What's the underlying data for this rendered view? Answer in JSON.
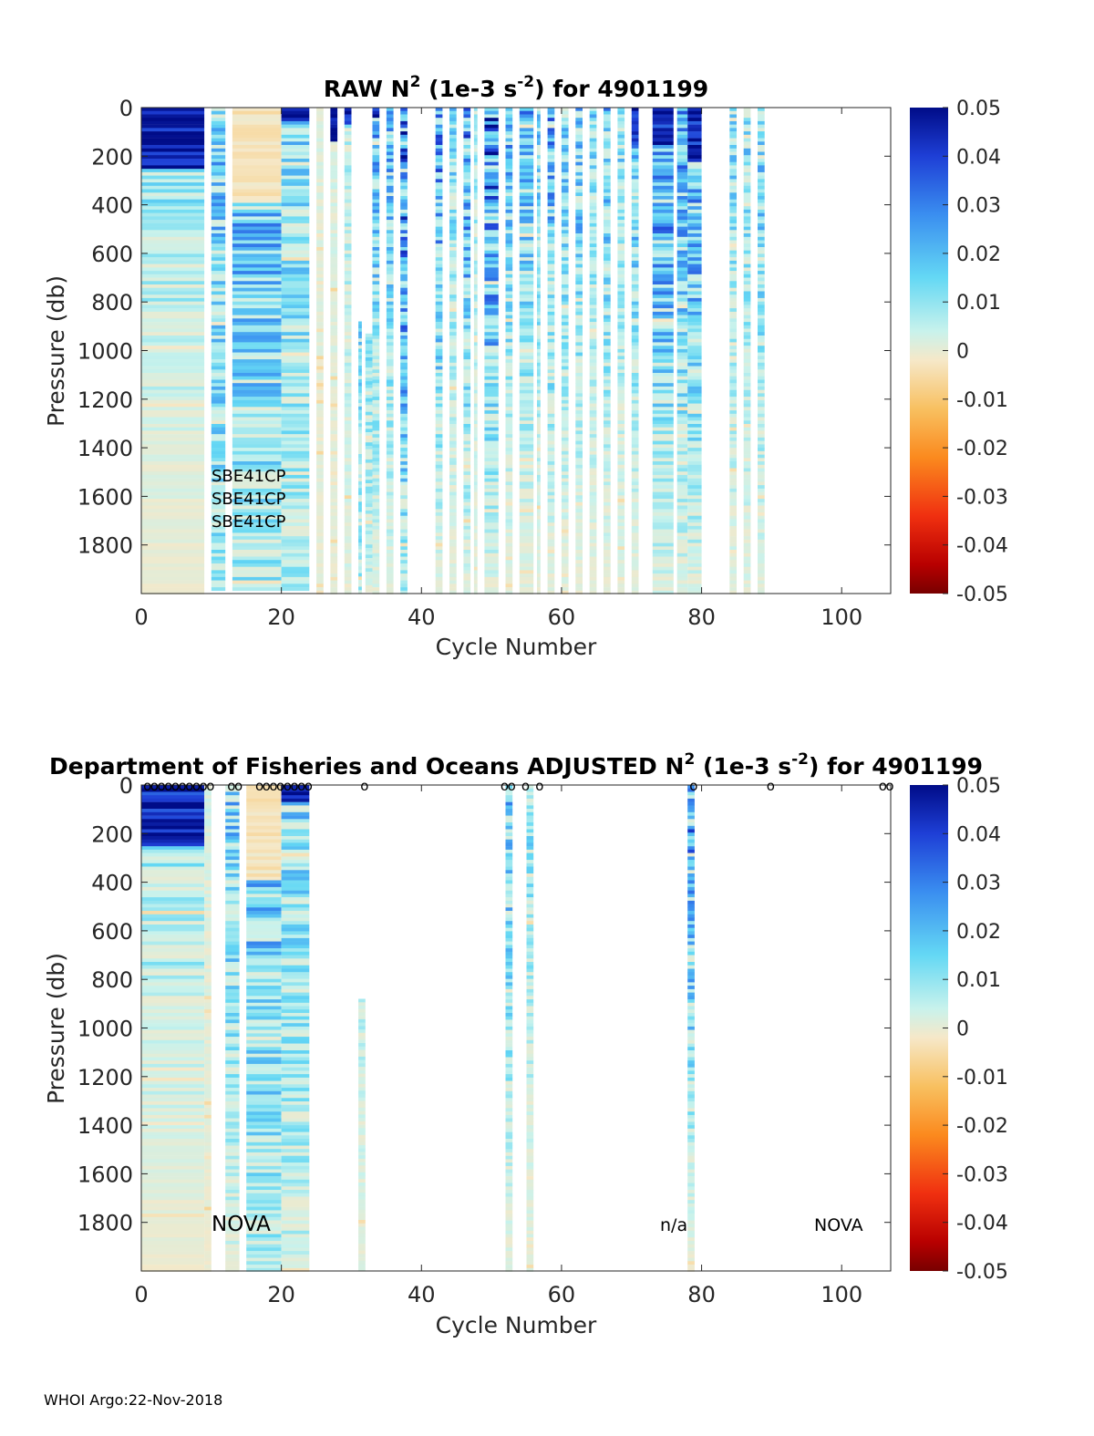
{
  "chart_data": [
    {
      "type": "heatmap",
      "id": "raw",
      "title_main": "RAW N",
      "title_sup": "2",
      "title_unit_open": " (1e-3 s",
      "title_unit_sup": "-2",
      "title_tail": ") for 4901199",
      "xlabel": "Cycle Number",
      "ylabel": "Pressure (db)",
      "xlim": [
        0,
        107
      ],
      "ylim": [
        2000,
        0
      ],
      "xticks": [
        "0",
        "20",
        "40",
        "60",
        "80",
        "100"
      ],
      "xtick_values": [
        0,
        20,
        40,
        60,
        80,
        100
      ],
      "yticks": [
        "0",
        "200",
        "400",
        "600",
        "800",
        "1000",
        "1200",
        "1400",
        "1600",
        "1800"
      ],
      "ytick_values": [
        0,
        200,
        400,
        600,
        800,
        1000,
        1200,
        1400,
        1600,
        1800
      ],
      "sensor_labels": [
        "SBE41CP",
        "SBE41CP",
        "SBE41CP"
      ],
      "sensor_label_pos": {
        "x": 10,
        "y": [
          1520,
          1615,
          1710
        ]
      },
      "profiles": [
        {
          "cycles": [
            0,
            9
          ],
          "pmax": 1990,
          "surface_strong": 250,
          "mid": 0.014,
          "deep": 0.002
        },
        {
          "cycles": [
            10,
            12
          ],
          "pmax": 1980,
          "surface_strong": 0,
          "mid": 0.018,
          "deep": 0.012
        },
        {
          "cycles": [
            13,
            20
          ],
          "pmax": 1980,
          "surface_strong": 0,
          "mid": 0.02,
          "deep": 0.012,
          "warm_patch": [
            0,
            380
          ]
        },
        {
          "cycles": [
            20,
            24
          ],
          "pmax": 1980,
          "surface_strong": 50,
          "mid": 0.015,
          "deep": 0.01
        },
        {
          "cycles": [
            25,
            26
          ],
          "pmax": 1990,
          "surface_strong": 0,
          "mid": 0.005,
          "deep": 0.003
        },
        {
          "cycles": [
            27,
            28
          ],
          "pmax": 1990,
          "surface_strong": 130,
          "mid": 0.006,
          "deep": 0.003
        },
        {
          "cycles": [
            29,
            30
          ],
          "pmax": 1990,
          "surface_strong": 60,
          "mid": 0.01,
          "deep": 0.005
        },
        {
          "cycles": [
            31,
            31.5
          ],
          "pmax": 1990,
          "pmin": 880,
          "surface_strong": 0,
          "mid": 0.02,
          "deep": 0.01
        },
        {
          "cycles": [
            32,
            33
          ],
          "pmax": 1990,
          "pmin": 930,
          "surface_strong": 0,
          "mid": 0.015,
          "deep": 0.008
        },
        {
          "cycles": [
            33,
            34
          ],
          "pmax": 1990,
          "surface_strong": 40,
          "mid": 0.02,
          "deep": 0.005
        },
        {
          "cycles": [
            35,
            36
          ],
          "pmax": 1990,
          "surface_strong": 0,
          "mid": 0.02,
          "deep": 0.005
        },
        {
          "cycles": [
            37,
            38
          ],
          "pmax": 1990,
          "surface_strong": 0,
          "mid": 0.03,
          "deep": 0.01
        },
        {
          "cycles": [
            42,
            43
          ],
          "pmax": 1990,
          "surface_strong": 0,
          "mid": 0.025,
          "deep": 0.005
        },
        {
          "cycles": [
            44,
            45
          ],
          "pmax": 1990,
          "surface_strong": 0,
          "mid": 0.015,
          "deep": 0.004
        },
        {
          "cycles": [
            46,
            47
          ],
          "pmax": 1990,
          "surface_strong": 0,
          "mid": 0.025,
          "deep": 0.005
        },
        {
          "cycles": [
            47.5,
            48
          ],
          "pmax": 1990,
          "surface_strong": 0,
          "mid": 0.012,
          "deep": 0.004
        },
        {
          "cycles": [
            49,
            51
          ],
          "pmax": 1990,
          "surface_strong": 0,
          "mid": 0.03,
          "deep": 0.005
        },
        {
          "cycles": [
            52,
            53
          ],
          "pmax": 1990,
          "surface_strong": 0,
          "mid": 0.02,
          "deep": 0.004
        },
        {
          "cycles": [
            54,
            56
          ],
          "pmax": 1990,
          "surface_strong": 0,
          "mid": 0.02,
          "deep": 0.004
        },
        {
          "cycles": [
            56.5,
            57
          ],
          "pmax": 1990,
          "surface_strong": 0,
          "mid": 0.018,
          "deep": 0.004
        },
        {
          "cycles": [
            58,
            59
          ],
          "pmax": 1990,
          "surface_strong": 0,
          "mid": 0.022,
          "deep": 0.004
        },
        {
          "cycles": [
            60,
            61
          ],
          "pmax": 1990,
          "surface_strong": 0,
          "mid": 0.018,
          "deep": 0.004
        },
        {
          "cycles": [
            62,
            63
          ],
          "pmax": 1990,
          "surface_strong": 0,
          "mid": 0.02,
          "deep": 0.004
        },
        {
          "cycles": [
            64,
            65
          ],
          "pmax": 1990,
          "surface_strong": 0,
          "mid": 0.015,
          "deep": 0.004
        },
        {
          "cycles": [
            66,
            67
          ],
          "pmax": 1990,
          "surface_strong": 0,
          "mid": 0.02,
          "deep": 0.004
        },
        {
          "cycles": [
            68,
            69
          ],
          "pmax": 1990,
          "surface_strong": 0,
          "mid": 0.015,
          "deep": 0.004
        },
        {
          "cycles": [
            70,
            71
          ],
          "pmax": 1990,
          "surface_strong": 150,
          "mid": 0.02,
          "deep": 0.004
        },
        {
          "cycles": [
            73,
            76
          ],
          "pmax": 1990,
          "surface_strong": 150,
          "mid": 0.025,
          "deep": 0.006
        },
        {
          "cycles": [
            76.5,
            78
          ],
          "pmax": 1990,
          "surface_strong": 0,
          "mid": 0.022,
          "deep": 0.006
        },
        {
          "cycles": [
            78,
            80
          ],
          "pmax": 1990,
          "surface_strong": 220,
          "mid": 0.025,
          "deep": 0.006
        },
        {
          "cycles": [
            84,
            85
          ],
          "pmax": 1990,
          "surface_strong": 0,
          "mid": 0.015,
          "deep": 0.005
        },
        {
          "cycles": [
            86,
            87
          ],
          "pmax": 1990,
          "surface_strong": 0,
          "mid": 0.015,
          "deep": 0.005
        },
        {
          "cycles": [
            88,
            89
          ],
          "pmax": 1990,
          "surface_strong": 0,
          "mid": 0.018,
          "deep": 0.005
        }
      ]
    },
    {
      "type": "heatmap",
      "id": "adjusted",
      "title_main": "Department of Fisheries and Oceans  ADJUSTED N",
      "title_sup": "2",
      "title_unit_open": " (1e-3 s",
      "title_unit_sup": "-2",
      "title_tail": ") for 4901199",
      "xlabel": "Cycle Number",
      "ylabel": "Pressure (db)",
      "xlim": [
        0,
        107
      ],
      "ylim": [
        2000,
        0
      ],
      "xticks": [
        "0",
        "20",
        "40",
        "60",
        "80",
        "100"
      ],
      "xtick_values": [
        0,
        20,
        40,
        60,
        80,
        100
      ],
      "yticks": [
        "0",
        "200",
        "400",
        "600",
        "800",
        "1000",
        "1200",
        "1400",
        "1600",
        "1800"
      ],
      "ytick_values": [
        0,
        200,
        400,
        600,
        800,
        1000,
        1200,
        1400,
        1600,
        1800
      ],
      "annotations": [
        {
          "text": "NOVA",
          "x": 10,
          "y": 1815,
          "size": "large"
        },
        {
          "text": "n/a",
          "x": 74,
          "y": 1815,
          "size": "normal"
        },
        {
          "text": "NOVA",
          "x": 96,
          "y": 1815,
          "size": "normal"
        }
      ],
      "circle_marker": "o",
      "marker_cycles": [
        1,
        2,
        3,
        4,
        5,
        6,
        7,
        8,
        9,
        10,
        13,
        14,
        17,
        18,
        19,
        20,
        21,
        22,
        23,
        24,
        32,
        52,
        53,
        55,
        57,
        79,
        90,
        106,
        107
      ],
      "profiles": [
        {
          "cycles": [
            0,
            9
          ],
          "pmax": 1990,
          "surface_strong": 250,
          "mid": 0.014,
          "deep": 0.002
        },
        {
          "cycles": [
            9,
            10
          ],
          "pmax": 1990,
          "surface_strong": 0,
          "mid": 0.006,
          "deep": 0.002
        },
        {
          "cycles": [
            12,
            14
          ],
          "pmax": 1990,
          "surface_strong": 0,
          "mid": 0.018,
          "deep": 0.006
        },
        {
          "cycles": [
            15,
            20
          ],
          "pmax": 1990,
          "surface_strong": 0,
          "mid": 0.02,
          "deep": 0.01,
          "warm_patch": [
            0,
            380
          ]
        },
        {
          "cycles": [
            20,
            24
          ],
          "pmax": 1990,
          "surface_strong": 60,
          "mid": 0.016,
          "deep": 0.008
        },
        {
          "cycles": [
            31,
            32
          ],
          "pmax": 1990,
          "pmin": 880,
          "surface_strong": 0,
          "mid": 0.012,
          "deep": 0.004
        },
        {
          "cycles": [
            52,
            53
          ],
          "pmax": 1990,
          "surface_strong": 0,
          "mid": 0.02,
          "deep": 0.004
        },
        {
          "cycles": [
            55,
            56
          ],
          "pmax": 1990,
          "surface_strong": 0,
          "mid": 0.014,
          "deep": 0.004
        },
        {
          "cycles": [
            78,
            79
          ],
          "pmax": 1990,
          "surface_strong": 0,
          "mid": 0.025,
          "deep": 0.004
        }
      ]
    }
  ],
  "colorbar": {
    "ticks": [
      "0.05",
      "0.04",
      "0.03",
      "0.02",
      "0.01",
      "0",
      "-0.01",
      "-0.02",
      "-0.03",
      "-0.04",
      "-0.05"
    ],
    "tick_values": [
      0.05,
      0.04,
      0.03,
      0.02,
      0.01,
      0,
      -0.01,
      -0.02,
      -0.03,
      -0.04,
      -0.05
    ],
    "range": [
      -0.05,
      0.05
    ],
    "colors_top_to_bottom": [
      "#000c88",
      "#1e3fd6",
      "#3a8ef0",
      "#64d8f4",
      "#c8f2ec",
      "#f6e8c8",
      "#f8c060",
      "#fb8a1e",
      "#f03010",
      "#b80000",
      "#780000"
    ]
  },
  "footer": "WHOI Argo:22-Nov-2018"
}
